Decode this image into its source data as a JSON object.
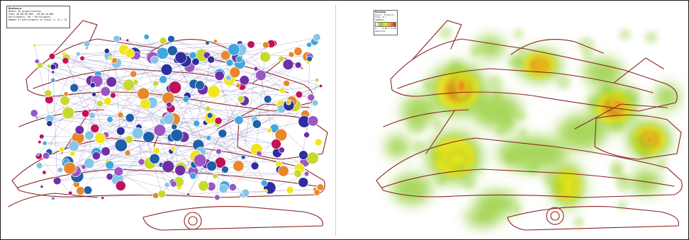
{
  "bee_swarm_legend": {
    "title": "BeeSwarm",
    "rows": [
      "Media: 2D graph/fixation",
      "Time: 00:00:00.000 - 00:00:10.000",
      "Participants: 58 / Participants",
      "Number of participants in focus: 4, 31 / 31 / 31"
    ]
  },
  "heatmap_legend": {
    "title": "Heatmap",
    "rows": [
      "Count: Fixation",
      "Time: 0 / 10000ms"
    ],
    "scale_min": "0",
    "scale_max": "0.00 / 1.00",
    "footer": "Absolute"
  },
  "colors": {
    "sketch_stroke": "#8b2323",
    "connection_line": "#7a6fb0",
    "fixation_palette": [
      "#2d2e9f",
      "#3fa7e0",
      "#6e2fa6",
      "#c6d92d",
      "#1e5fa8",
      "#e8882b",
      "#c1115a",
      "#f1e51b",
      "#86c5e8",
      "#9a56c4"
    ],
    "heat_palette": [
      "#8ac926",
      "#f1e51b",
      "#f08a1f",
      "#d7261e"
    ]
  }
}
